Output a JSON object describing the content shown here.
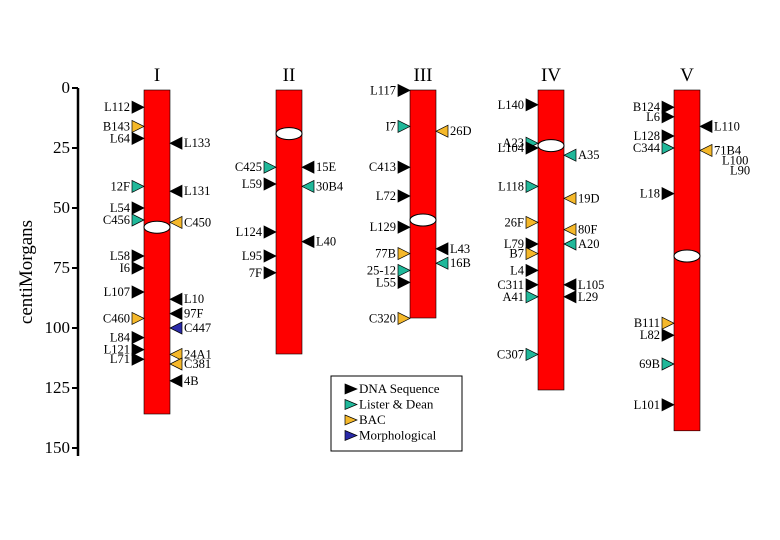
{
  "axis": {
    "label": "centiMorgans",
    "ticks": [
      0,
      25,
      50,
      75,
      100,
      125,
      150
    ]
  },
  "colors": {
    "chromosome": "#ff0000",
    "centromere": "#ffffff",
    "DNA Sequence": "#000000",
    "Lister & Dean": "#20b89a",
    "BAC": "#f5b82a",
    "Morphological": "#2a2aa8"
  },
  "legend": [
    {
      "type": "DNA Sequence",
      "label": "DNA Sequence"
    },
    {
      "type": "Lister & Dean",
      "label": "Lister & Dean"
    },
    {
      "type": "BAC",
      "label": "BAC"
    },
    {
      "type": "Morphological",
      "label": "Morphological"
    }
  ],
  "chromosomes": [
    {
      "name": "I",
      "length": 135,
      "centromere": 58,
      "markers": [
        {
          "label": "L112",
          "side": "left",
          "type": "DNA Sequence",
          "pos": 8
        },
        {
          "label": "B143",
          "side": "left",
          "type": "BAC",
          "pos": 16
        },
        {
          "label": "L64",
          "side": "left",
          "type": "DNA Sequence",
          "pos": 21
        },
        {
          "label": "L133",
          "side": "right",
          "type": "DNA Sequence",
          "pos": 23
        },
        {
          "label": "12F",
          "side": "left",
          "type": "Lister & Dean",
          "pos": 41
        },
        {
          "label": "L131",
          "side": "right",
          "type": "DNA Sequence",
          "pos": 43
        },
        {
          "label": "L54",
          "side": "left",
          "type": "DNA Sequence",
          "pos": 50
        },
        {
          "label": "C456",
          "side": "left",
          "type": "Lister & Dean",
          "pos": 55
        },
        {
          "label": "C450",
          "side": "right",
          "type": "BAC",
          "pos": 56
        },
        {
          "label": "L58",
          "side": "left",
          "type": "DNA Sequence",
          "pos": 70
        },
        {
          "label": "I6",
          "side": "left",
          "type": "DNA Sequence",
          "pos": 75
        },
        {
          "label": "L107",
          "side": "left",
          "type": "DNA Sequence",
          "pos": 85
        },
        {
          "label": "L10",
          "side": "right",
          "type": "DNA Sequence",
          "pos": 88
        },
        {
          "label": "97F",
          "side": "right",
          "type": "DNA Sequence",
          "pos": 94
        },
        {
          "label": "C460",
          "side": "left",
          "type": "BAC",
          "pos": 96
        },
        {
          "label": "C447",
          "side": "right",
          "type": "Morphological",
          "pos": 100
        },
        {
          "label": "L84",
          "side": "left",
          "type": "DNA Sequence",
          "pos": 104
        },
        {
          "label": "L121",
          "side": "left",
          "type": "DNA Sequence",
          "pos": 109
        },
        {
          "label": "24A1",
          "side": "right",
          "type": "BAC",
          "pos": 111
        },
        {
          "label": "L71",
          "side": "left",
          "type": "DNA Sequence",
          "pos": 113
        },
        {
          "label": "C381",
          "side": "right",
          "type": "BAC",
          "pos": 115
        },
        {
          "label": "4B",
          "side": "right",
          "type": "DNA Sequence",
          "pos": 122
        }
      ]
    },
    {
      "name": "II",
      "length": 110,
      "centromere": 19,
      "markers": [
        {
          "label": "C425",
          "side": "left",
          "type": "Lister & Dean",
          "pos": 33
        },
        {
          "label": "15E",
          "side": "right",
          "type": "DNA Sequence",
          "pos": 33
        },
        {
          "label": "L59",
          "side": "left",
          "type": "DNA Sequence",
          "pos": 40
        },
        {
          "label": "30B4",
          "side": "right",
          "type": "Lister & Dean",
          "pos": 41
        },
        {
          "label": "L124",
          "side": "left",
          "type": "DNA Sequence",
          "pos": 60
        },
        {
          "label": "L40",
          "side": "right",
          "type": "DNA Sequence",
          "pos": 64
        },
        {
          "label": "L95",
          "side": "left",
          "type": "DNA Sequence",
          "pos": 70
        },
        {
          "label": "7F",
          "side": "left",
          "type": "DNA Sequence",
          "pos": 77
        }
      ]
    },
    {
      "name": "III",
      "length": 95,
      "centromere": 55,
      "markers": [
        {
          "label": "L117",
          "side": "left",
          "type": "DNA Sequence",
          "pos": 1
        },
        {
          "label": "I7",
          "side": "left",
          "type": "Lister & Dean",
          "pos": 16
        },
        {
          "label": "26D",
          "side": "right",
          "type": "BAC",
          "pos": 18
        },
        {
          "label": "C413",
          "side": "left",
          "type": "DNA Sequence",
          "pos": 33
        },
        {
          "label": "L72",
          "side": "left",
          "type": "DNA Sequence",
          "pos": 45
        },
        {
          "label": "L129",
          "side": "left",
          "type": "DNA Sequence",
          "pos": 58
        },
        {
          "label": "L43",
          "side": "right",
          "type": "DNA Sequence",
          "pos": 67
        },
        {
          "label": "77B",
          "side": "left",
          "type": "BAC",
          "pos": 69
        },
        {
          "label": "16B",
          "side": "right",
          "type": "Lister & Dean",
          "pos": 73
        },
        {
          "label": "25-12",
          "side": "left",
          "type": "Lister & Dean",
          "pos": 76
        },
        {
          "label": "L55",
          "side": "left",
          "type": "DNA Sequence",
          "pos": 81
        },
        {
          "label": "C320",
          "side": "left",
          "type": "BAC",
          "pos": 96
        }
      ]
    },
    {
      "name": "IV",
      "length": 125,
      "centromere": 24,
      "markers": [
        {
          "label": "L140",
          "side": "left",
          "type": "DNA Sequence",
          "pos": 7
        },
        {
          "label": "A23",
          "side": "left",
          "type": "Lister & Dean",
          "pos": 23
        },
        {
          "label": "L104",
          "side": "left",
          "type": "DNA Sequence",
          "pos": 25
        },
        {
          "label": "A35",
          "side": "right",
          "type": "Lister & Dean",
          "pos": 28
        },
        {
          "label": "L118",
          "side": "left",
          "type": "Lister & Dean",
          "pos": 41
        },
        {
          "label": "19D",
          "side": "right",
          "type": "BAC",
          "pos": 46
        },
        {
          "label": "26F",
          "side": "left",
          "type": "BAC",
          "pos": 56
        },
        {
          "label": "80F",
          "side": "right",
          "type": "BAC",
          "pos": 59
        },
        {
          "label": "L79",
          "side": "left",
          "type": "DNA Sequence",
          "pos": 65
        },
        {
          "label": "A20",
          "side": "right",
          "type": "Lister & Dean",
          "pos": 65
        },
        {
          "label": "B7",
          "side": "left",
          "type": "BAC",
          "pos": 69
        },
        {
          "label": "L4",
          "side": "left",
          "type": "DNA Sequence",
          "pos": 76
        },
        {
          "label": "C311",
          "side": "left",
          "type": "DNA Sequence",
          "pos": 82
        },
        {
          "label": "L105",
          "side": "right",
          "type": "DNA Sequence",
          "pos": 82
        },
        {
          "label": "A41",
          "side": "left",
          "type": "Lister & Dean",
          "pos": 87
        },
        {
          "label": "L29",
          "side": "right",
          "type": "DNA Sequence",
          "pos": 87
        },
        {
          "label": "C307",
          "side": "left",
          "type": "Lister & Dean",
          "pos": 111
        }
      ]
    },
    {
      "name": "V",
      "length": 142,
      "centromere": 70,
      "markers": [
        {
          "label": "B124",
          "side": "left",
          "type": "DNA Sequence",
          "pos": 8
        },
        {
          "label": "L6",
          "side": "left",
          "type": "DNA Sequence",
          "pos": 12
        },
        {
          "label": "L110",
          "side": "right",
          "type": "DNA Sequence",
          "pos": 16
        },
        {
          "label": "L128",
          "side": "left",
          "type": "DNA Sequence",
          "pos": 20
        },
        {
          "label": "C344",
          "side": "left",
          "type": "Lister & Dean",
          "pos": 25
        },
        {
          "label": "71B4",
          "side": "right",
          "type": "BAC",
          "pos": 26
        },
        {
          "label": "L100",
          "side": "right",
          "type": "DNA Sequence",
          "pos": 26
        },
        {
          "label": "L90",
          "side": "right",
          "type": "DNA Sequence",
          "pos": 26
        },
        {
          "label": "L18",
          "side": "left",
          "type": "DNA Sequence",
          "pos": 44
        },
        {
          "label": "B111",
          "side": "left",
          "type": "BAC",
          "pos": 98
        },
        {
          "label": "L82",
          "side": "left",
          "type": "DNA Sequence",
          "pos": 103
        },
        {
          "label": "69B",
          "side": "left",
          "type": "Lister & Dean",
          "pos": 115
        },
        {
          "label": "L101",
          "side": "left",
          "type": "DNA Sequence",
          "pos": 132
        }
      ]
    }
  ]
}
